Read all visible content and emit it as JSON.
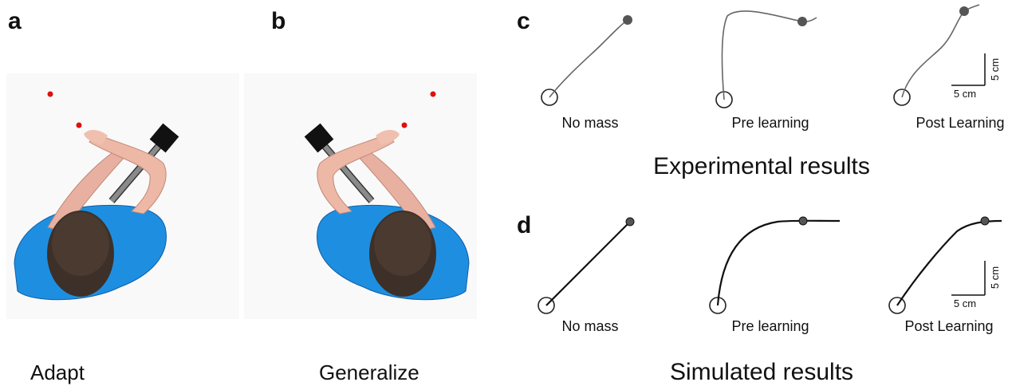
{
  "panels": {
    "a": "a",
    "b": "b",
    "c": "c",
    "d": "d"
  },
  "adapt_caption": "Adapt",
  "generalize_caption": "Generalize",
  "experimental": {
    "title": "Experimental results",
    "labels": [
      "No mass",
      "Pre learning",
      "Post Learning"
    ],
    "scale_x": "5 cm",
    "scale_y": "5 cm"
  },
  "simulated": {
    "title": "Simulated results",
    "labels": [
      "No mass",
      "Pre learning",
      "Post Learning"
    ],
    "scale_x": "5 cm",
    "scale_y": "5 cm"
  }
}
